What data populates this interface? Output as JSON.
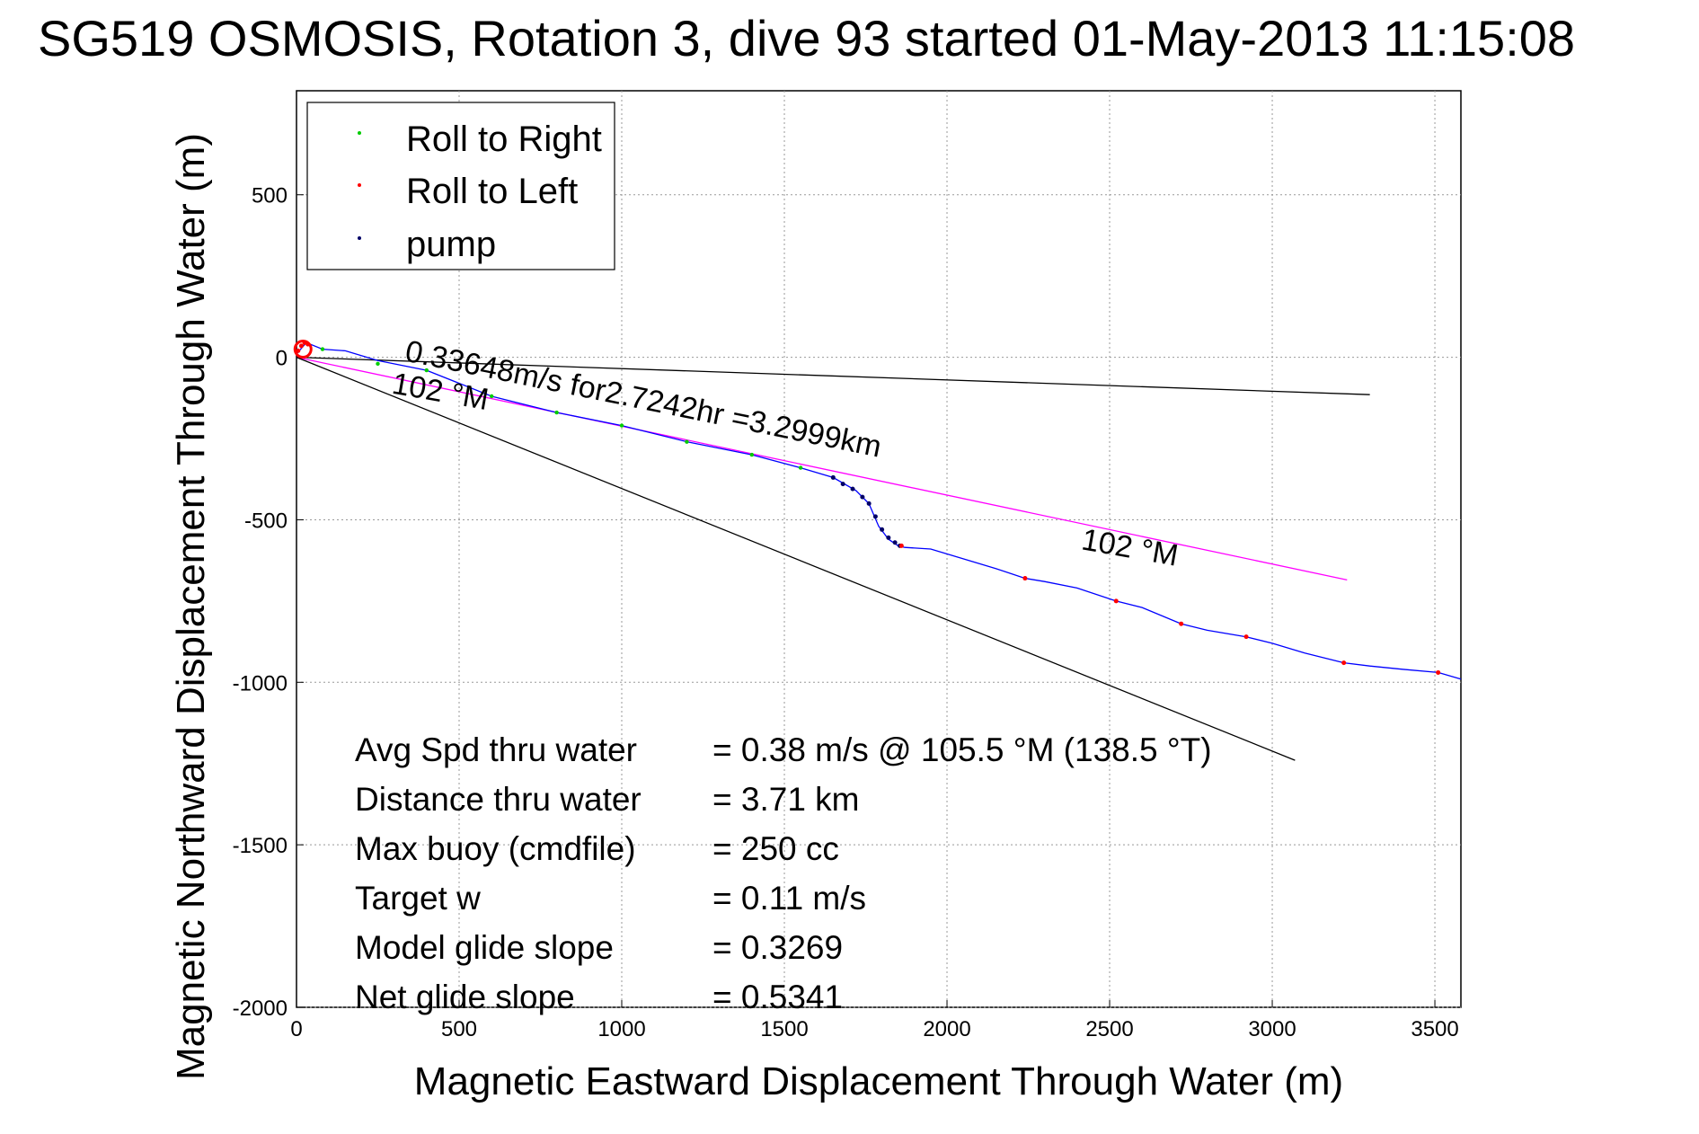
{
  "chart_data": {
    "type": "line",
    "title": "SG519 OSMOSIS, Rotation 3, dive 93 started 01-May-2013 11:15:08",
    "xlabel": "Magnetic Eastward Displacement Through Water (m)",
    "ylabel": "Magnetic Northward Displacement Through Water (m)",
    "xlim": [
      0,
      3580
    ],
    "ylim": [
      -2000,
      820
    ],
    "xticks": [
      0,
      500,
      1000,
      1500,
      2000,
      2500,
      3000,
      3500
    ],
    "yticks": [
      500,
      0,
      -500,
      -1000,
      -1500,
      -2000
    ],
    "grid": true,
    "legend": {
      "placement": "top-left",
      "entries": [
        {
          "name": "Roll to Right",
          "color": "#00cc00"
        },
        {
          "name": "Roll to Left",
          "color": "#ff0000"
        },
        {
          "name": "pump",
          "color": "#000066"
        }
      ]
    },
    "track": {
      "color": "#0000ff",
      "x": [
        0,
        30,
        80,
        150,
        250,
        400,
        600,
        800,
        1000,
        1200,
        1400,
        1550,
        1650,
        1720,
        1760,
        1790,
        1820,
        1850,
        1870,
        1950,
        2050,
        2150,
        2240,
        2300,
        2400,
        2520,
        2600,
        2720,
        2800,
        2920,
        3000,
        3100,
        3220,
        3300,
        3400,
        3510,
        3580
      ],
      "y": [
        10,
        45,
        25,
        20,
        -10,
        -40,
        -120,
        -170,
        -210,
        -260,
        -300,
        -340,
        -370,
        -410,
        -450,
        -520,
        -560,
        -580,
        -585,
        -590,
        -620,
        -650,
        -680,
        -690,
        -710,
        -750,
        -770,
        -820,
        -840,
        -860,
        -880,
        -910,
        -940,
        -950,
        -960,
        -970,
        -990
      ]
    },
    "lines": [
      {
        "name": "black-ref-line",
        "color": "#000000",
        "x": [
          0,
          3300
        ],
        "y": [
          0,
          -115
        ]
      },
      {
        "name": "magenta-heading-line",
        "color": "#ff00ff",
        "x": [
          0,
          3230
        ],
        "y": [
          0,
          -685
        ]
      },
      {
        "name": "black-heading-line",
        "color": "#000000",
        "x": [
          0,
          3070
        ],
        "y": [
          0,
          -1240
        ]
      }
    ],
    "roll_right_points": {
      "x": [
        80,
        250,
        400,
        600,
        800,
        1000,
        1200,
        1400,
        1550
      ],
      "y": [
        25,
        -20,
        -40,
        -120,
        -170,
        -210,
        -260,
        -300,
        -340
      ]
    },
    "roll_left_points": {
      "x": [
        5,
        15,
        25,
        35,
        1860,
        2240,
        2520,
        2720,
        2920,
        3220,
        3510
      ],
      "y": [
        20,
        35,
        45,
        40,
        -580,
        -680,
        -750,
        -820,
        -860,
        -940,
        -970
      ]
    },
    "pump_points": {
      "x": [
        1650,
        1680,
        1710,
        1740,
        1760,
        1780,
        1800,
        1820,
        1840,
        1855
      ],
      "y": [
        -370,
        -390,
        -405,
        -430,
        -450,
        -490,
        -530,
        -555,
        -570,
        -580
      ]
    },
    "annotations": [
      {
        "text": "0.33648m/s for2.7242hr =3.2999km",
        "x": 330,
        "y": -10,
        "rotation": 11.5
      },
      {
        "text": "102 °M",
        "x": 290,
        "y": -110,
        "rotation": 10
      },
      {
        "text": "102 °M",
        "x": 2410,
        "y": -590,
        "rotation": 10
      }
    ],
    "stats": [
      {
        "label": "Avg Spd thru water",
        "value": "=  0.38 m/s @ 105.5 °M (138.5 °T)"
      },
      {
        "label": "Distance thru water",
        "value": "=  3.71 km"
      },
      {
        "label": "Max buoy (cmdfile)",
        "value": "= 250 cc"
      },
      {
        "label": "Target w",
        "value": "= 0.11 m/s"
      },
      {
        "label": "Model glide slope",
        "value": "= 0.3269"
      },
      {
        "label": "Net glide slope",
        "value": "= 0.5341"
      }
    ]
  }
}
